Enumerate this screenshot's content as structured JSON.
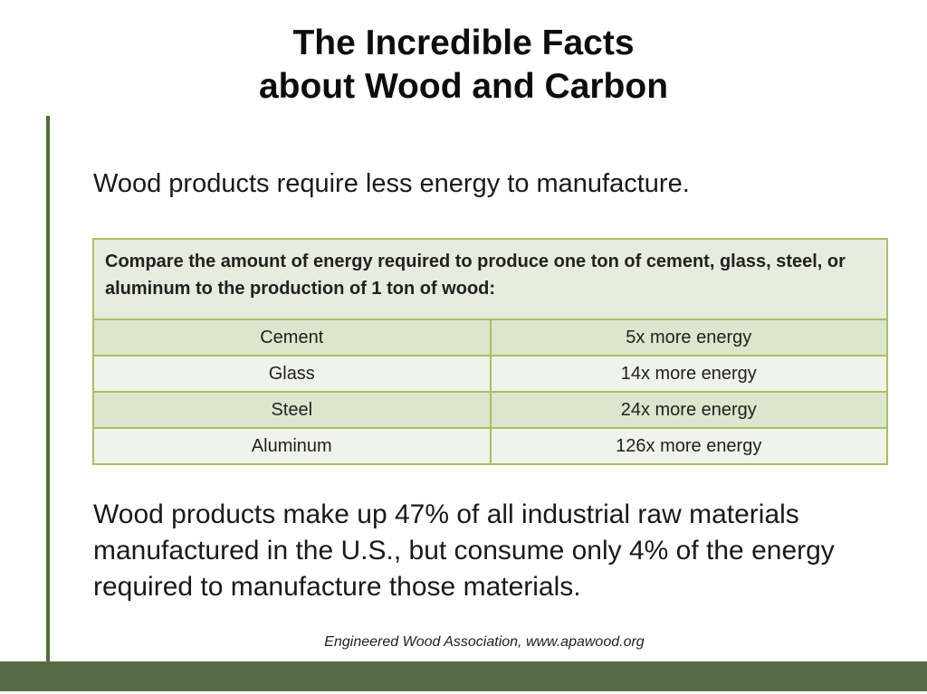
{
  "slide": {
    "title": {
      "line1": "The Incredible Facts",
      "line2": "about Wood and Carbon"
    },
    "intro": "Wood products require less energy to manufacture.",
    "energy_table": {
      "caption": "Compare the amount of energy required to produce one ton of cement, glass, steel, or aluminum to the production of 1 ton of wood:",
      "rows": [
        {
          "material": "Cement",
          "energy": "5x more energy"
        },
        {
          "material": "Glass",
          "energy": "14x more energy"
        },
        {
          "material": "Steel",
          "energy": "24x more energy"
        },
        {
          "material": "Aluminum",
          "energy": "126x more energy"
        }
      ]
    },
    "closing": "Wood products make up 47% of all industrial raw materials manufactured in the U.S., but consume only 4% of the energy required to manufacture those materials.",
    "source": "Engineered Wood Association, www.apawood.org"
  },
  "colors": {
    "accent_line_green": "#546c3c",
    "bottom_bar_green": "#566b45",
    "table_border_green": "#a7c065",
    "table_caption_bg": "#e7ecdf",
    "row_band_bg": "#dce6cc",
    "row_light_bg": "#f0f3ea",
    "text_color": "#1a1a1a"
  }
}
